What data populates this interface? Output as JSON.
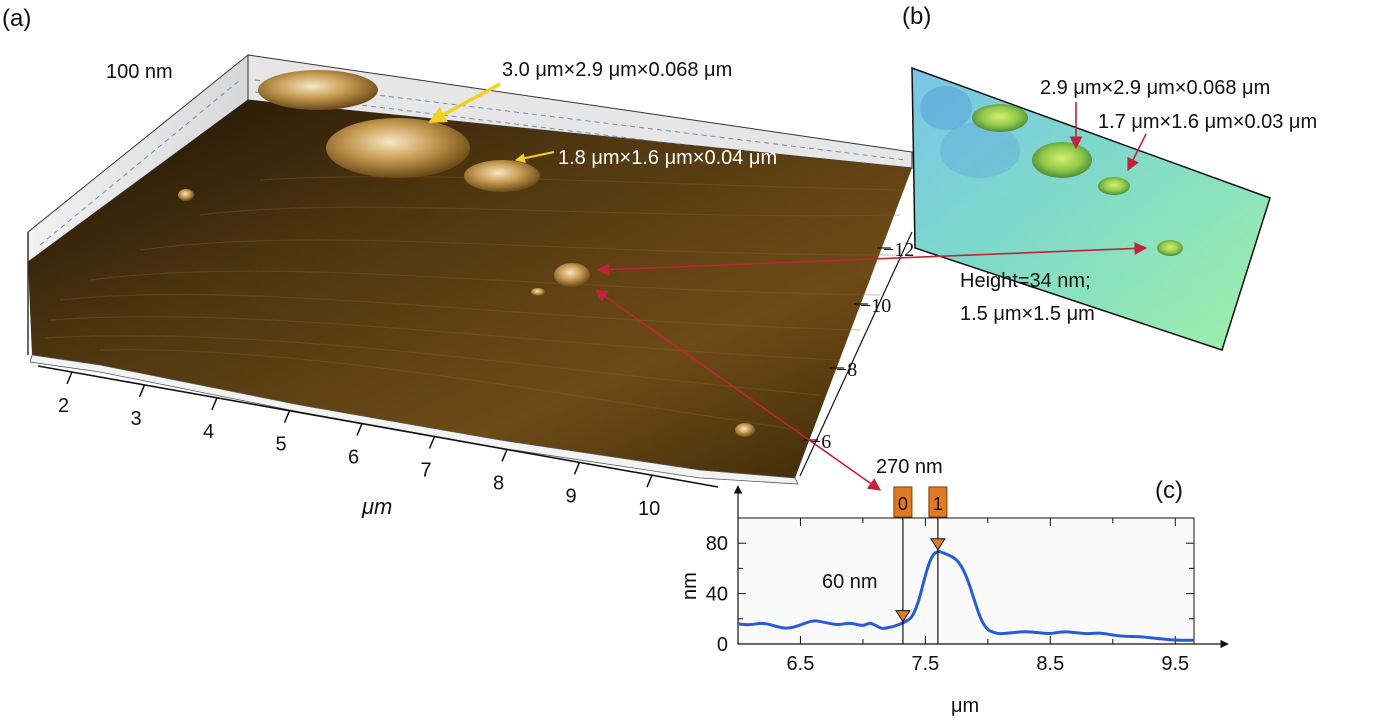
{
  "panels": {
    "a": {
      "label": "(a)",
      "z_scale_label": "100 nm",
      "x_axis_label": "μm",
      "x_ticks": [
        "2",
        "3",
        "4",
        "5",
        "6",
        "7",
        "8",
        "9",
        "10"
      ],
      "y_ticks": [
        "−12",
        "−10",
        "−8",
        "−6"
      ],
      "annotations": {
        "large_particle": "3.0 μm×2.9 μm×0.068 μm",
        "small_particle": "1.8 μm×1.6 μm×0.04 μm"
      }
    },
    "b": {
      "label": "(b)",
      "annotations": {
        "particle_1": "2.9 μm×2.9 μm×0.068 μm",
        "particle_2": "1.7 μm×1.6 μm×0.03 μm",
        "height_line1": "Height=34 nm;",
        "height_line2": "1.5 μm×1.5 μm"
      }
    },
    "c": {
      "label": "(c)",
      "width_annotation": "270 nm",
      "height_annotation": "60 nm",
      "marker_labels": [
        "0",
        "1"
      ]
    }
  },
  "colors": {
    "profile_line": "#2a5bd7",
    "arrow_red": "#c0233a",
    "arrow_yellow": "#f0d020",
    "marker_orange": "#e07b22"
  },
  "chart_data": {
    "type": "line",
    "xlabel": "μm",
    "ylabel": "nm",
    "xlim": [
      6.0,
      9.65
    ],
    "ylim": [
      0,
      100
    ],
    "x_ticks": [
      6.5,
      7.5,
      8.5,
      9.5
    ],
    "x_minor_ticks": [
      7.0,
      8.0,
      9.0
    ],
    "y_ticks": [
      0,
      40,
      80
    ],
    "y_minor_ticks": [
      20,
      60,
      100
    ],
    "grid": false,
    "markers": [
      {
        "label": "0",
        "x": 7.32,
        "y": 17
      },
      {
        "label": "1",
        "x": 7.6,
        "y": 74
      }
    ],
    "series": [
      {
        "x": [
          6.0,
          6.1,
          6.2,
          6.3,
          6.4,
          6.5,
          6.6,
          6.7,
          6.8,
          6.9,
          7.0,
          7.05,
          7.1,
          7.15,
          7.2,
          7.25,
          7.3,
          7.35,
          7.4,
          7.45,
          7.5,
          7.55,
          7.6,
          7.65,
          7.7,
          7.75,
          7.8,
          7.85,
          7.9,
          7.95,
          8.0,
          8.05,
          8.1,
          8.2,
          8.3,
          8.4,
          8.5,
          8.6,
          8.7,
          8.8,
          8.9,
          9.0,
          9.1,
          9.2,
          9.3,
          9.4,
          9.5,
          9.6,
          9.65
        ],
        "y": [
          16,
          15,
          17,
          14,
          12,
          15,
          19,
          17,
          15,
          17,
          14,
          17,
          15,
          12,
          13,
          14,
          16,
          18,
          22,
          35,
          55,
          70,
          74,
          72,
          70,
          67,
          60,
          48,
          32,
          18,
          11,
          9,
          8,
          9,
          10,
          9,
          8,
          10,
          9,
          8,
          9,
          7,
          6,
          6,
          5,
          4,
          3,
          3,
          3
        ]
      }
    ]
  }
}
